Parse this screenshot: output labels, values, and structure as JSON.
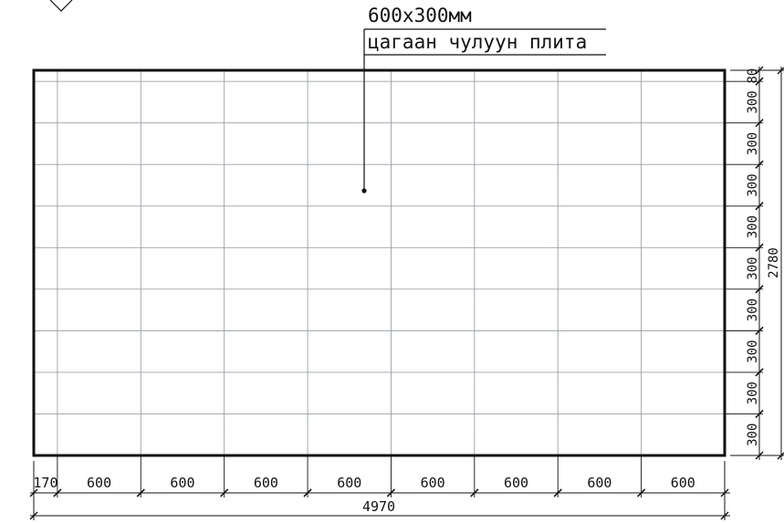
{
  "drawing": {
    "leader": {
      "size_label": "600x300мм",
      "material_label": "цагаан чулуун плита"
    },
    "horizontal_dimensions": {
      "segments": [
        170,
        600,
        600,
        600,
        600,
        600,
        600,
        600,
        600
      ],
      "segment_labels": [
        "170",
        "600",
        "600",
        "600",
        "600",
        "600",
        "600",
        "600",
        "600"
      ],
      "total_label": "4970"
    },
    "vertical_dimensions": {
      "segments": [
        80,
        300,
        300,
        300,
        300,
        300,
        300,
        300,
        300,
        300
      ],
      "segment_labels": [
        "80",
        "300",
        "300",
        "300",
        "300",
        "300",
        "300",
        "300",
        "300",
        "300"
      ],
      "total_label": "2780"
    },
    "colors": {
      "outline": "#111111",
      "grid": "#9aa0a6",
      "text": "#111111"
    }
  }
}
